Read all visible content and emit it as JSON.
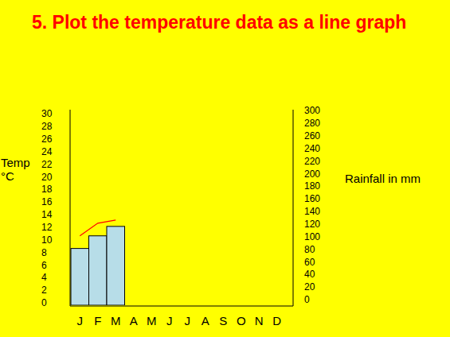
{
  "chart_data": {
    "type": "bar",
    "title": "5. Plot the temperature data as a line graph",
    "ylabel": "Temp °C",
    "y2label": "Rainfall in mm",
    "categories": [
      "J",
      "F",
      "M",
      "A",
      "M",
      "J",
      "J",
      "A",
      "S",
      "O",
      "N",
      "D"
    ],
    "series": [
      {
        "name": "Rainfall",
        "type": "bar",
        "axis": "y2",
        "color": "#b7dde8",
        "values": [
          90,
          110,
          125,
          null,
          null,
          null,
          null,
          null,
          null,
          null,
          null,
          null
        ]
      },
      {
        "name": "Temperature",
        "type": "line",
        "axis": "y",
        "color": "#ff0000",
        "values": [
          11,
          13,
          13.5,
          null,
          null,
          null,
          null,
          null,
          null,
          null,
          null,
          null
        ]
      }
    ],
    "ylim": [
      0,
      30
    ],
    "yticks": [
      0,
      2,
      4,
      6,
      8,
      10,
      12,
      14,
      16,
      18,
      20,
      22,
      24,
      26,
      28,
      30
    ],
    "y2lim": [
      0,
      300
    ],
    "y2ticks": [
      0,
      20,
      40,
      60,
      80,
      100,
      120,
      140,
      160,
      180,
      200,
      220,
      240,
      260,
      280,
      300
    ],
    "grid": false
  }
}
